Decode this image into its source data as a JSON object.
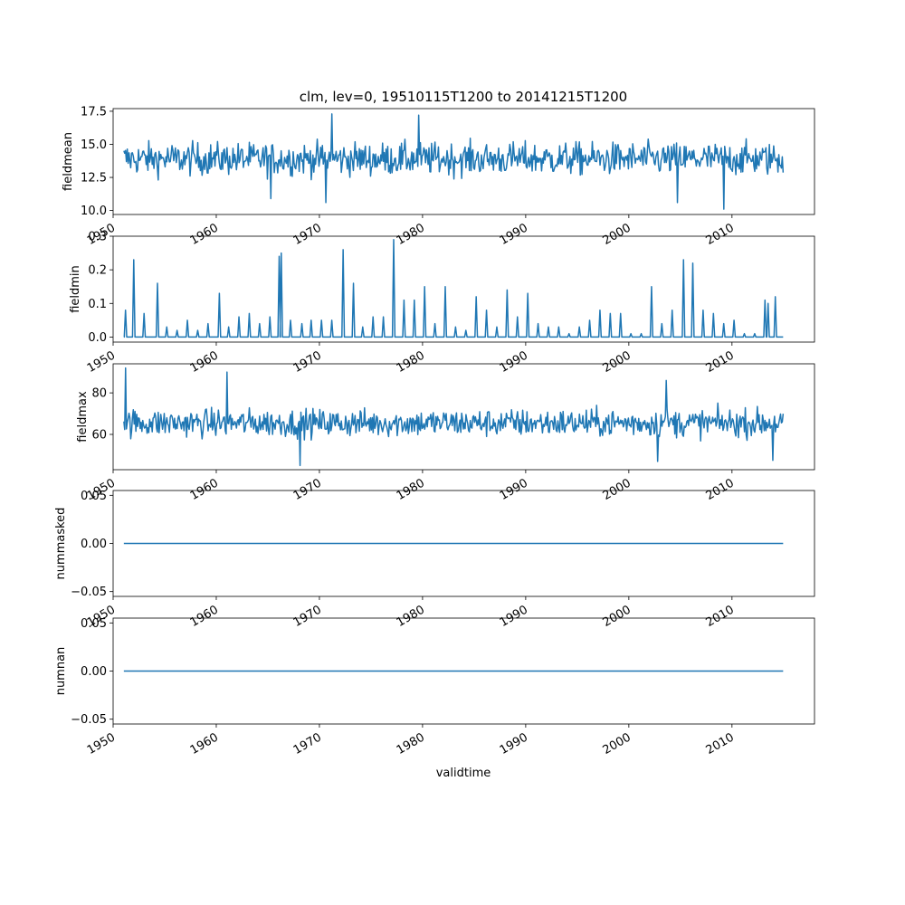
{
  "title": "clm, lev=0, 19510115T1200 to 20141215T1200",
  "xlabel": "validtime",
  "line_color": "#1f77b4",
  "x_tick_labels": [
    "1950",
    "1960",
    "1970",
    "1980",
    "1990",
    "2000",
    "2010"
  ],
  "chart_data": [
    {
      "type": "line",
      "ylabel": "fieldmean",
      "xlim": [
        1950.0,
        2018.0
      ],
      "ylim": [
        9.7,
        17.7
      ],
      "yticks": [
        10.0,
        12.5,
        15.0,
        17.5
      ],
      "ytick_labels": [
        "10.0",
        "12.5",
        "15.0",
        "17.5"
      ],
      "x_start": 1951.04,
      "x_end": 2014.96,
      "n_points": 768,
      "baseline": 13.9,
      "noise": 1.2,
      "extremes": [
        [
          1971.2,
          17.3
        ],
        [
          1979.6,
          17.2
        ],
        [
          1970.6,
          10.6
        ],
        [
          2009.2,
          10.1
        ],
        [
          2004.7,
          10.6
        ],
        [
          1965.3,
          10.9
        ]
      ]
    },
    {
      "type": "line",
      "ylabel": "fieldmin",
      "xlim": [
        1950.0,
        2018.0
      ],
      "ylim": [
        -0.015,
        0.3
      ],
      "yticks": [
        0.0,
        0.1,
        0.2,
        0.3
      ],
      "ytick_labels": [
        "0.0",
        "0.1",
        "0.2",
        "0.3"
      ],
      "x_start": 1951.04,
      "x_end": 2014.96,
      "baseline": 0.0,
      "peaks": [
        [
          1951.2,
          0.08
        ],
        [
          1952.0,
          0.23
        ],
        [
          1953.0,
          0.07
        ],
        [
          1954.3,
          0.16
        ],
        [
          1955.2,
          0.03
        ],
        [
          1956.2,
          0.02
        ],
        [
          1957.2,
          0.05
        ],
        [
          1958.2,
          0.02
        ],
        [
          1959.2,
          0.04
        ],
        [
          1960.3,
          0.13
        ],
        [
          1961.2,
          0.03
        ],
        [
          1962.2,
          0.06
        ],
        [
          1963.2,
          0.07
        ],
        [
          1964.2,
          0.04
        ],
        [
          1965.2,
          0.06
        ],
        [
          1966.1,
          0.24
        ],
        [
          1966.3,
          0.25
        ],
        [
          1967.2,
          0.05
        ],
        [
          1968.3,
          0.04
        ],
        [
          1969.2,
          0.05
        ],
        [
          1970.2,
          0.05
        ],
        [
          1971.2,
          0.05
        ],
        [
          1972.3,
          0.26
        ],
        [
          1973.3,
          0.16
        ],
        [
          1974.2,
          0.03
        ],
        [
          1975.2,
          0.06
        ],
        [
          1976.2,
          0.06
        ],
        [
          1977.2,
          0.29
        ],
        [
          1978.2,
          0.11
        ],
        [
          1979.2,
          0.11
        ],
        [
          1980.2,
          0.15
        ],
        [
          1981.2,
          0.04
        ],
        [
          1982.2,
          0.15
        ],
        [
          1983.2,
          0.03
        ],
        [
          1984.2,
          0.02
        ],
        [
          1985.2,
          0.12
        ],
        [
          1986.2,
          0.08
        ],
        [
          1987.2,
          0.03
        ],
        [
          1988.2,
          0.14
        ],
        [
          1989.2,
          0.06
        ],
        [
          1990.2,
          0.13
        ],
        [
          1991.2,
          0.04
        ],
        [
          1992.2,
          0.03
        ],
        [
          1993.2,
          0.03
        ],
        [
          1994.2,
          0.01
        ],
        [
          1995.2,
          0.03
        ],
        [
          1996.2,
          0.05
        ],
        [
          1997.2,
          0.08
        ],
        [
          1998.2,
          0.07
        ],
        [
          1999.2,
          0.07
        ],
        [
          2000.2,
          0.01
        ],
        [
          2001.2,
          0.01
        ],
        [
          2002.2,
          0.15
        ],
        [
          2003.2,
          0.04
        ],
        [
          2004.2,
          0.08
        ],
        [
          2005.3,
          0.23
        ],
        [
          2006.2,
          0.22
        ],
        [
          2007.2,
          0.08
        ],
        [
          2008.2,
          0.07
        ],
        [
          2009.2,
          0.04
        ],
        [
          2010.2,
          0.05
        ],
        [
          2011.2,
          0.01
        ],
        [
          2012.2,
          0.01
        ],
        [
          2013.2,
          0.11
        ],
        [
          2013.5,
          0.1
        ],
        [
          2014.2,
          0.12
        ]
      ]
    },
    {
      "type": "line",
      "ylabel": "fieldmax",
      "xlim": [
        1950.0,
        2018.0
      ],
      "ylim": [
        43.0,
        94.0
      ],
      "yticks": [
        60,
        80
      ],
      "ytick_labels": [
        "60",
        "80"
      ],
      "x_start": 1951.04,
      "x_end": 2014.96,
      "n_points": 768,
      "baseline": 65.5,
      "noise": 6.5,
      "extremes": [
        [
          1951.2,
          92.0
        ],
        [
          1961.0,
          90.0
        ],
        [
          2003.6,
          86.0
        ],
        [
          1968.1,
          45.0
        ],
        [
          2002.8,
          47.0
        ],
        [
          2014.0,
          47.5
        ]
      ]
    },
    {
      "type": "line",
      "ylabel": "nummasked",
      "xlim": [
        1950.0,
        2018.0
      ],
      "ylim": [
        -0.055,
        0.055
      ],
      "yticks": [
        -0.05,
        0.0,
        0.05
      ],
      "ytick_labels": [
        "−0.05",
        "0.00",
        "0.05"
      ],
      "x_start": 1951.04,
      "x_end": 2014.96,
      "constant": 0.0
    },
    {
      "type": "line",
      "ylabel": "numnan",
      "xlim": [
        1950.0,
        2018.0
      ],
      "ylim": [
        -0.055,
        0.055
      ],
      "yticks": [
        -0.05,
        0.0,
        0.05
      ],
      "ytick_labels": [
        "−0.05",
        "0.00",
        "0.05"
      ],
      "x_start": 1951.04,
      "x_end": 2014.96,
      "constant": 0.0
    }
  ]
}
